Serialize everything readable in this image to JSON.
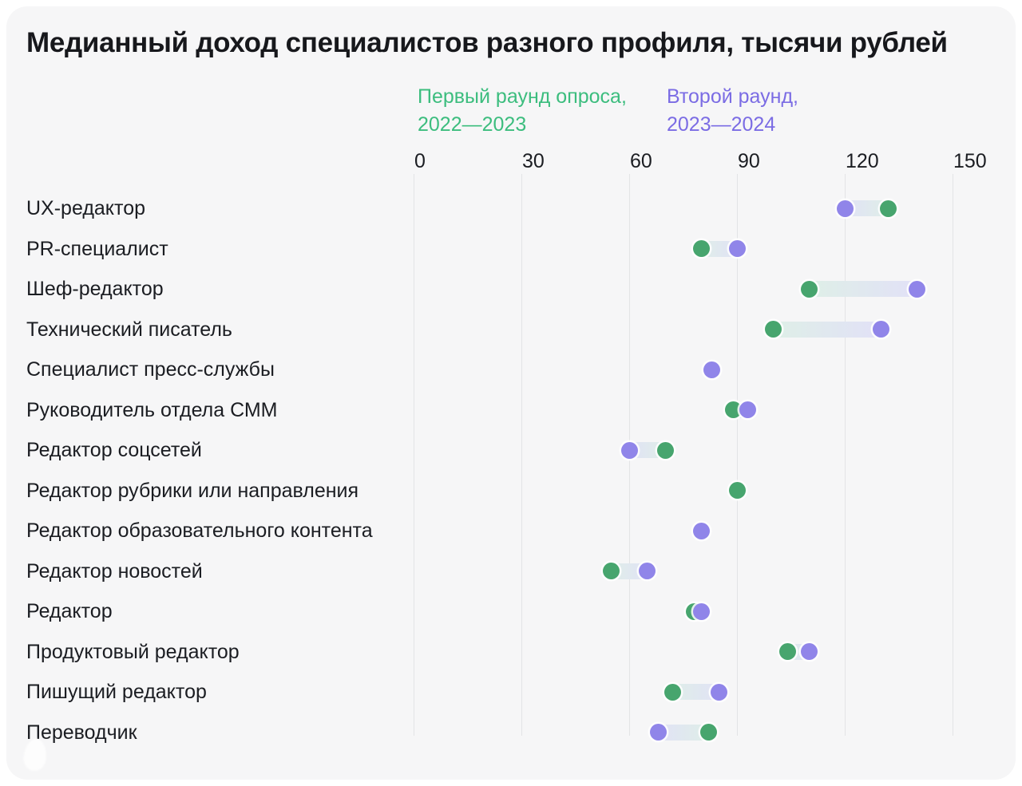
{
  "title": "Медианный доход специалистов разного профиля, тысячи рублей",
  "legend": {
    "first_round": {
      "line1": "Первый раунд опроса,",
      "line2": "2022—2023",
      "text_color": "#3cbd7e"
    },
    "second_round": {
      "line1": "Второй раунд,",
      "line2": "2023—2024",
      "text_color": "#7b6ce4"
    }
  },
  "chart_data": {
    "type": "scatter",
    "variant": "dumbbell-range",
    "title": "Медианный доход специалистов разного профиля, тысячи рублей",
    "xlabel": "",
    "ylabel": "",
    "xlim": [
      0,
      150
    ],
    "x_ticks": [
      0,
      30,
      60,
      90,
      120,
      150
    ],
    "grid": true,
    "legend_position": "top",
    "categories": [
      "UX-редактор",
      "PR-специалист",
      "Шеф-редактор",
      "Технический писатель",
      "Специалист пресс-службы",
      "Руководитель отдела СММ",
      "Редактор соцсетей",
      "Редактор рубрики или направления",
      "Редактор образовательного контента",
      "Редактор новостей",
      "Редактор",
      "Продуктовый редактор",
      "Пишущий редактор",
      "Переводчик"
    ],
    "series": [
      {
        "name": "Первый раунд опроса, 2022—2023",
        "color": "#47a56e",
        "pale_color": "#def0e6",
        "values": [
          132,
          80,
          110,
          100,
          null,
          89,
          70,
          90,
          null,
          55,
          78,
          104,
          72,
          82
        ]
      },
      {
        "name": "Второй раунд, 2023—2024",
        "color": "#9085e9",
        "pale_color": "#e2e0f8",
        "values": [
          120,
          90,
          140,
          130,
          83,
          93,
          60,
          null,
          80,
          65,
          80,
          110,
          85,
          68
        ]
      }
    ]
  },
  "colors": {
    "page_bg": "#ffffff",
    "card_bg": "#f6f6f7",
    "title_text": "#17181c",
    "label_text": "#1b1d22",
    "gridline": "#e3e4e6",
    "round1_dot": "#47a56e",
    "round2_dot": "#9085e9",
    "round1_legend_text": "#3cbd7e",
    "round2_legend_text": "#7b6ce4"
  }
}
